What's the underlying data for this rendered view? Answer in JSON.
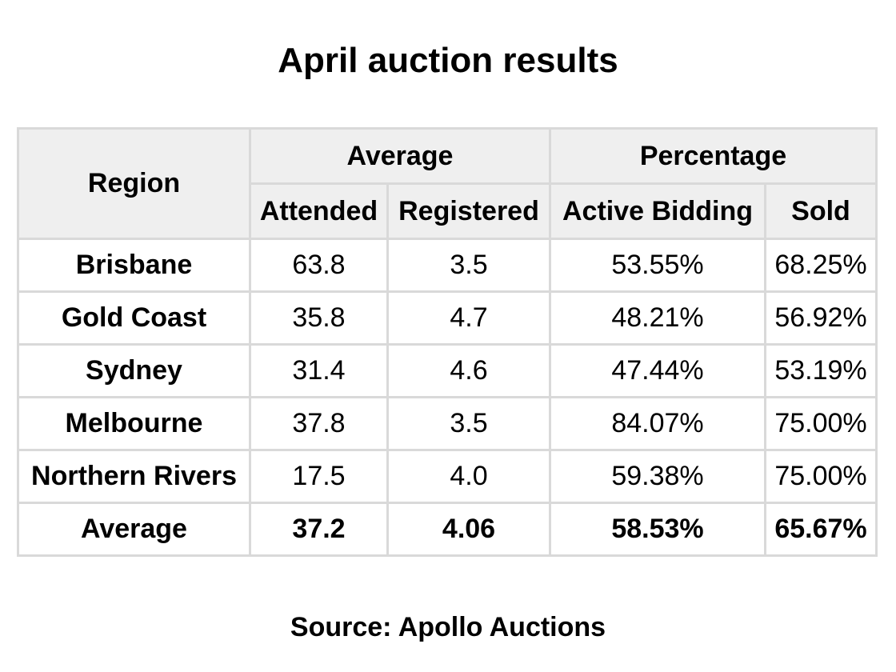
{
  "title": "April auction results",
  "table": {
    "header": {
      "region": "Region",
      "group_average": "Average",
      "group_percentage": "Percentage",
      "attended": "Attended",
      "registered": "Registered",
      "active_bidding": "Active Bidding",
      "sold": "Sold"
    },
    "rows": [
      {
        "region": "Brisbane",
        "attended": "63.8",
        "registered": "3.5",
        "active_bidding": "53.55%",
        "sold": "68.25%"
      },
      {
        "region": "Gold Coast",
        "attended": "35.8",
        "registered": "4.7",
        "active_bidding": "48.21%",
        "sold": "56.92%"
      },
      {
        "region": "Sydney",
        "attended": "31.4",
        "registered": "4.6",
        "active_bidding": "47.44%",
        "sold": "53.19%"
      },
      {
        "region": "Melbourne",
        "attended": "37.8",
        "registered": "3.5",
        "active_bidding": "84.07%",
        "sold": "75.00%"
      },
      {
        "region": "Northern Rivers",
        "attended": "17.5",
        "registered": "4.0",
        "active_bidding": "59.38%",
        "sold": "75.00%"
      }
    ],
    "average_row": {
      "region": "Average",
      "attended": "37.2",
      "registered": "4.06",
      "active_bidding": "58.53%",
      "sold": "65.67%"
    }
  },
  "source": "Source: Apollo Auctions"
}
